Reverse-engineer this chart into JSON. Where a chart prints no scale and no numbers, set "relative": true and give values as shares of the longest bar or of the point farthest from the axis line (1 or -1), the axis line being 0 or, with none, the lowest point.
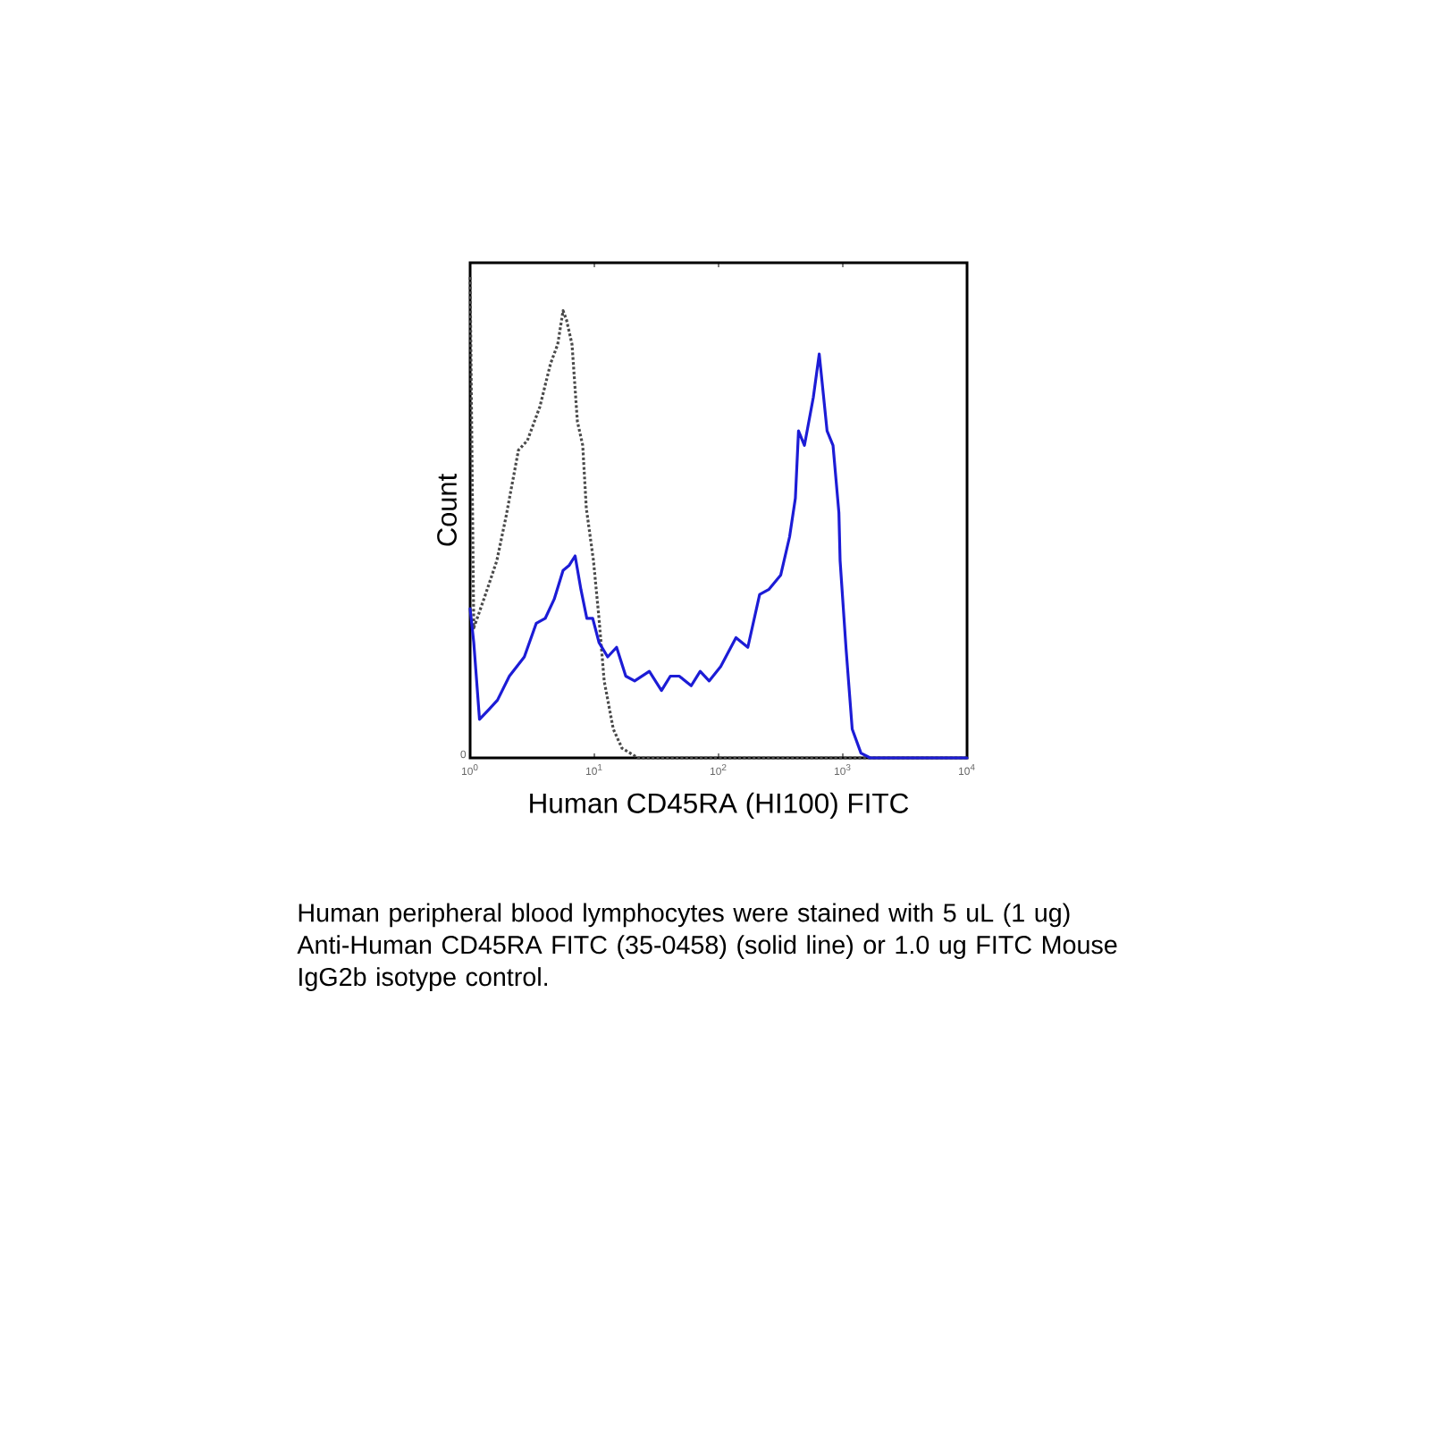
{
  "chart_data": {
    "type": "line",
    "xlabel": "Human CD45RA (HI100) FITC",
    "ylabel": "Count",
    "log": "x",
    "xlim": [
      1,
      10000
    ],
    "xticks": [
      {
        "value": 1,
        "label": "10$^{0}$"
      },
      {
        "value": 10,
        "label": "10$^{1}$"
      },
      {
        "value": 100,
        "label": "10$^{2}$"
      },
      {
        "value": 1000,
        "label": "10$^{3}$"
      },
      {
        "value": 10000,
        "label": "10$^{4}$"
      }
    ],
    "relative": true,
    "series": [
      {
        "color": "#4a4a4a",
        "line_style": "dotted",
        "x": [
          1,
          1.07,
          1.33,
          1.64,
          1.94,
          2.45,
          2.89,
          3.64,
          4.44,
          5.07,
          5.6,
          5.98,
          6.61,
          7.3,
          8.06,
          8.61,
          9.84,
          10.9,
          12,
          14.2,
          16.7,
          22.5,
          38,
          10000
        ],
        "values": [
          1,
          0.27,
          0.34,
          0.41,
          0.5,
          0.64,
          0.66,
          0.73,
          0.82,
          0.86,
          0.93,
          0.91,
          0.86,
          0.7,
          0.65,
          0.52,
          0.41,
          0.29,
          0.16,
          0.06,
          0.02,
          0,
          0,
          0
        ]
      },
      {
        "color": "#1c1cd6",
        "line_style": "solid",
        "x": [
          1,
          1.07,
          1.19,
          1.41,
          1.66,
          2.07,
          2.73,
          3.41,
          4.02,
          4.75,
          5.6,
          6.25,
          7,
          7.8,
          8.7,
          9.7,
          10.9,
          12.8,
          15.1,
          17.9,
          21.1,
          27.7,
          34.7,
          40.9,
          48.2,
          60.2,
          71.1,
          83.9,
          104,
          138,
          172,
          214,
          253,
          316,
          373,
          415,
          440,
          491,
          579,
          646,
          747,
          834,
          930,
          951,
          1060,
          1190,
          1400,
          1660,
          10000
        ],
        "values": [
          0.31,
          0.24,
          0.08,
          0.1,
          0.12,
          0.17,
          0.21,
          0.28,
          0.29,
          0.33,
          0.39,
          0.4,
          0.42,
          0.35,
          0.29,
          0.29,
          0.24,
          0.21,
          0.23,
          0.17,
          0.16,
          0.18,
          0.14,
          0.17,
          0.17,
          0.15,
          0.18,
          0.16,
          0.19,
          0.25,
          0.23,
          0.34,
          0.35,
          0.38,
          0.46,
          0.54,
          0.68,
          0.65,
          0.75,
          0.84,
          0.68,
          0.65,
          0.51,
          0.41,
          0.23,
          0.06,
          0.01,
          0,
          0
        ]
      }
    ],
    "annotations": [
      "0",
      "Human peripheral blood lymphocytes were stained with 5 uL (1 ug) Anti-Human CD45RA FITC (35-0458) (solid line) or 1.0 ug FITC Mouse IgG2b isotype control."
    ]
  }
}
